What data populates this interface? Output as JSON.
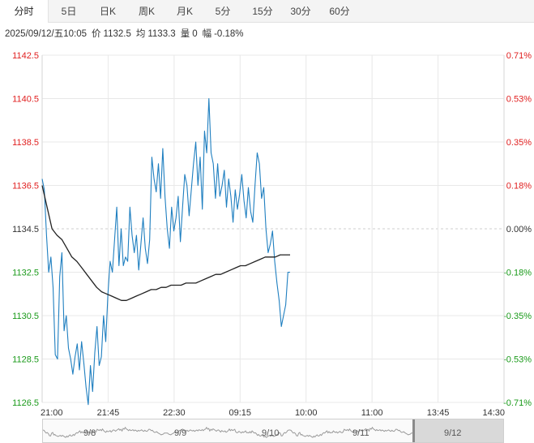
{
  "tabs": [
    {
      "label": "分时",
      "active": true
    },
    {
      "label": "5日",
      "active": false
    },
    {
      "label": "日K",
      "active": false
    },
    {
      "label": "周K",
      "active": false
    },
    {
      "label": "月K",
      "active": false
    },
    {
      "label": "5分",
      "active": false
    },
    {
      "label": "15分",
      "active": false
    },
    {
      "label": "30分",
      "active": false
    },
    {
      "label": "60分",
      "active": false
    }
  ],
  "info": {
    "datetime": "2025/09/12/五10:05",
    "price_label": "价",
    "price": "1132.5",
    "avg_label": "均",
    "avg": "1133.3",
    "vol_label": "量",
    "vol": "0",
    "change_label": "幅",
    "change": "-0.18%"
  },
  "colors": {
    "up": "#e02020",
    "down": "#1a9a1a",
    "flat": "#333333",
    "price_line": "#1f7fc0",
    "avg_line": "#222222",
    "grid": "#e8e8e8"
  },
  "chart_data": {
    "type": "line",
    "price_labels": [
      "1142.5",
      "1140.5",
      "1138.5",
      "1136.5",
      "1134.5",
      "1132.5",
      "1130.5",
      "1128.5",
      "1126.5"
    ],
    "pct_labels": [
      "0.71%",
      "0.53%",
      "0.35%",
      "0.18%",
      "0.00%",
      "-0.18%",
      "-0.35%",
      "-0.53%",
      "-0.71%"
    ],
    "time_labels": [
      "21:00",
      "21:45",
      "22:30",
      "09:15",
      "10:00",
      "11:00",
      "13:45",
      "14:30"
    ],
    "ylim": [
      1126.5,
      1142.5
    ],
    "prev_close": 1134.5,
    "series": [
      {
        "role": "price",
        "values": [
          1136.8,
          1136.3,
          1134.2,
          1132.5,
          1133.2,
          1131.8,
          1128.7,
          1128.5,
          1132.3,
          1133.4,
          1129.8,
          1130.5,
          1129.0,
          1128.5,
          1127.8,
          1128.6,
          1129.2,
          1128.0,
          1129.3,
          1128.3,
          1127.2,
          1126.4,
          1128.2,
          1127.0,
          1128.8,
          1130.0,
          1128.2,
          1128.6,
          1130.5,
          1129.3,
          1131.5,
          1133.0,
          1132.5,
          1134.0,
          1135.5,
          1132.8,
          1134.5,
          1132.8,
          1133.2,
          1133.0,
          1135.5,
          1134.2,
          1133.4,
          1134.2,
          1132.6,
          1133.8,
          1135.0,
          1133.6,
          1132.9,
          1134.0,
          1137.8,
          1136.8,
          1136.2,
          1137.5,
          1135.9,
          1138.2,
          1136.0,
          1134.5,
          1133.6,
          1135.5,
          1134.4,
          1135.0,
          1136.0,
          1133.9,
          1135.5,
          1137.0,
          1136.5,
          1135.1,
          1136.3,
          1137.5,
          1138.5,
          1136.5,
          1137.8,
          1135.4,
          1139.0,
          1138.0,
          1140.5,
          1138.0,
          1137.5,
          1135.9,
          1137.5,
          1136.0,
          1136.5,
          1137.2,
          1135.5,
          1136.8,
          1136.0,
          1134.8,
          1136.3,
          1135.4,
          1136.1,
          1137.0,
          1135.8,
          1135.0,
          1136.4,
          1135.3,
          1134.8,
          1136.5,
          1138.0,
          1137.5,
          1135.9,
          1136.4,
          1134.5,
          1133.4,
          1133.8,
          1134.4,
          1133.0,
          1132.0,
          1131.2,
          1130.0,
          1130.5,
          1131.0,
          1132.5,
          1132.5
        ]
      },
      {
        "role": "average",
        "values": [
          1136.5,
          1135.5,
          1134.5,
          1134.2,
          1134.0,
          1133.6,
          1133.2,
          1133.0,
          1132.7,
          1132.4,
          1132.1,
          1131.8,
          1131.6,
          1131.5,
          1131.4,
          1131.3,
          1131.2,
          1131.2,
          1131.3,
          1131.4,
          1131.5,
          1131.6,
          1131.7,
          1131.7,
          1131.8,
          1131.8,
          1131.9,
          1131.9,
          1131.9,
          1132.0,
          1132.0,
          1132.0,
          1132.1,
          1132.2,
          1132.3,
          1132.4,
          1132.4,
          1132.5,
          1132.6,
          1132.7,
          1132.8,
          1132.8,
          1132.9,
          1133.0,
          1133.1,
          1133.2,
          1133.2,
          1133.2,
          1133.3,
          1133.3,
          1133.3
        ]
      }
    ]
  },
  "navigator": {
    "dates": [
      "9/8",
      "9/9",
      "9/10",
      "9/11",
      "9/12"
    ]
  }
}
